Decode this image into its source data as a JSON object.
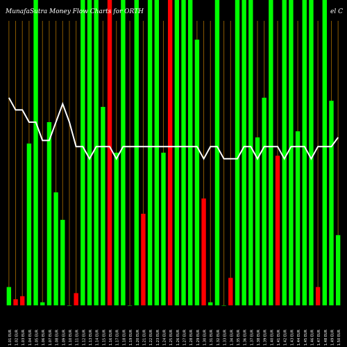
{
  "header": {
    "title": "MunafaSutra  Money Flow  Charts for ORTH",
    "title_right": "el C"
  },
  "colors": {
    "background": "#000000",
    "up_bar": "#00ff00",
    "down_bar": "#ff0000",
    "line": "#ffffff",
    "grid": "#8a5a00",
    "label": "#ffffff"
  },
  "chart_data": {
    "type": "bar",
    "ylim": [
      0,
      100
    ],
    "categories": [
      "1.01 EUR",
      "1.02 EUR",
      "1.03 EUR",
      "1.04 EUR",
      "1.05 EUR",
      "1.06 EUR",
      "1.07 EUR",
      "1.08 EUR",
      "1.09 EUR",
      "1.10 EUR",
      "1.11 EUR",
      "1.12 EUR",
      "1.13 EUR",
      "1.14 EUR",
      "1.15 EUR",
      "1.16 EUR",
      "1.17 EUR",
      "1.18 EUR",
      "1.19 EUR",
      "1.20 EUR",
      "1.21 EUR",
      "1.22 EUR",
      "1.23 EUR",
      "1.24 EUR",
      "1.25 EUR",
      "1.26 EUR",
      "1.27 EUR",
      "1.28 EUR",
      "1.29 EUR",
      "1.30 EUR",
      "1.31 EUR",
      "1.32 EUR",
      "1.33 EUR",
      "1.34 EUR",
      "1.35 EUR",
      "1.36 EUR",
      "1.37 EUR",
      "1.38 EUR",
      "1.39 EUR",
      "1.40 EUR",
      "1.41 EUR",
      "1.42 EUR",
      "1.43 EUR",
      "1.44 EUR",
      "1.45 EUR",
      "1.46 EUR",
      "1.47 EUR",
      "1.48 EUR",
      "1.49 EUR",
      "1.50 EUR"
    ],
    "series": [
      {
        "values": [
          6,
          2,
          3,
          53,
          100,
          1,
          60,
          37,
          28,
          0,
          4,
          100,
          100,
          100,
          65,
          100,
          50,
          100,
          0,
          100,
          30,
          100,
          100,
          50,
          100,
          100,
          100,
          100,
          87,
          35,
          1,
          100,
          0,
          9,
          100,
          100,
          100,
          55,
          68,
          100,
          49,
          100,
          100,
          57,
          100,
          100,
          6,
          100,
          67,
          23
        ],
        "directions": [
          "up",
          "down",
          "down",
          "up",
          "up",
          "up",
          "up",
          "up",
          "up",
          "up",
          "down",
          "up",
          "up",
          "up",
          "up",
          "down",
          "up",
          "up",
          "up",
          "up",
          "down",
          "up",
          "up",
          "up",
          "down",
          "up",
          "up",
          "up",
          "up",
          "down",
          "up",
          "up",
          "up",
          "down",
          "up",
          "up",
          "up",
          "up",
          "up",
          "up",
          "down",
          "up",
          "up",
          "up",
          "up",
          "up",
          "down",
          "up",
          "up",
          "up"
        ]
      }
    ],
    "line_values": [
      68,
      64,
      64,
      60,
      60,
      54,
      54,
      60,
      66,
      60,
      52,
      52,
      48,
      52,
      52,
      52,
      48,
      52,
      52,
      52,
      52,
      52,
      52,
      52,
      52,
      52,
      52,
      52,
      52,
      48,
      52,
      52,
      48,
      48,
      48,
      52,
      52,
      48,
      52,
      52,
      52,
      48,
      52,
      52,
      52,
      48,
      52,
      52,
      52,
      55
    ]
  }
}
